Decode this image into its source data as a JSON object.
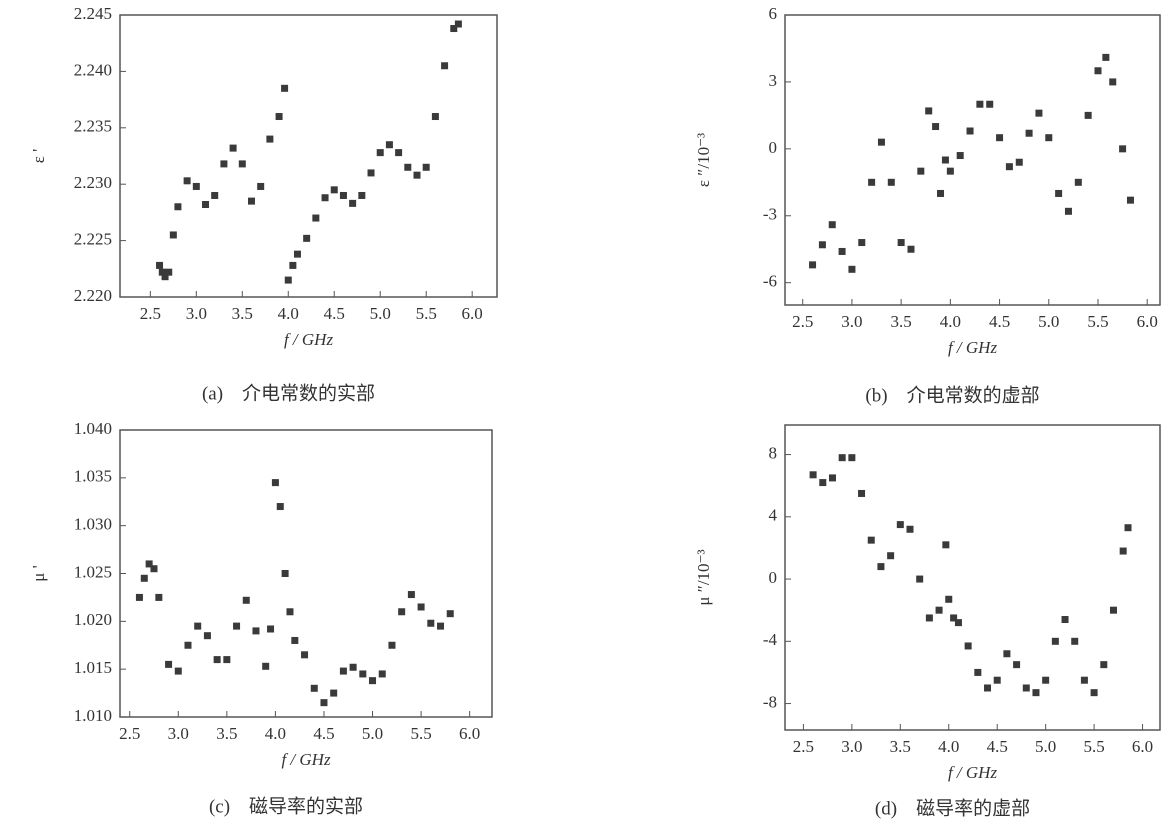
{
  "chart_data": [
    {
      "type": "scatter",
      "ylabel": "ε '",
      "xlabel": "f / GHz",
      "caption": "(a)　介电常数的实部",
      "color": "#3a3a3a",
      "xlim": [
        2.17,
        6.27
      ],
      "ylim": [
        2.22,
        2.245
      ],
      "xticks": [
        2.5,
        {
          "value": 3,
          "label": "3.0"
        },
        3.5,
        {
          "value": 4,
          "label": "4.0"
        },
        4.5,
        {
          "value": 5,
          "label": "5.0"
        },
        5.5,
        {
          "value": 6,
          "label": "6.0"
        }
      ],
      "yticks": [
        {
          "value": 2.22,
          "label": "2.220"
        },
        2.225,
        {
          "value": 2.23,
          "label": "2.230"
        },
        2.235,
        {
          "value": 2.24,
          "label": "2.240"
        },
        2.245
      ],
      "x": [
        2.6,
        2.63,
        2.66,
        2.7,
        2.75,
        2.8,
        2.9,
        3.0,
        3.1,
        3.2,
        3.3,
        3.4,
        3.5,
        3.6,
        3.7,
        3.8,
        3.9,
        3.96,
        4.0,
        4.05,
        4.1,
        4.2,
        4.3,
        4.4,
        4.5,
        4.6,
        4.7,
        4.8,
        4.9,
        5.0,
        5.1,
        5.2,
        5.3,
        5.4,
        5.5,
        5.6,
        5.7,
        5.8,
        5.85
      ],
      "values": [
        2.2228,
        2.2222,
        2.2218,
        2.2222,
        2.2255,
        2.228,
        2.2303,
        2.2298,
        2.2282,
        2.229,
        2.2318,
        2.2332,
        2.2318,
        2.2285,
        2.2298,
        2.234,
        2.236,
        2.2385,
        2.2215,
        2.2228,
        2.2238,
        2.2252,
        2.227,
        2.2288,
        2.2295,
        2.229,
        2.2283,
        2.229,
        2.231,
        2.2328,
        2.2335,
        2.2328,
        2.2315,
        2.2308,
        2.2315,
        2.236,
        2.2405,
        2.2438,
        2.2442
      ]
    },
    {
      "type": "scatter",
      "ylabel": "ε ″/10⁻³",
      "xlabel": "f / GHz",
      "caption": "(b)　介电常数的虚部",
      "color": "#3a3a3a",
      "xlim": [
        2.32,
        6.13
      ],
      "ylim": [
        -7,
        6
      ],
      "xticks": [
        2.5,
        {
          "value": 3,
          "label": "3.0"
        },
        3.5,
        {
          "value": 4,
          "label": "4.0"
        },
        4.5,
        {
          "value": 5,
          "label": "5.0"
        },
        5.5,
        {
          "value": 6,
          "label": "6.0"
        }
      ],
      "yticks": [
        -6,
        -3,
        0,
        3,
        6
      ],
      "x": [
        2.6,
        2.7,
        2.8,
        2.9,
        3.0,
        3.1,
        3.2,
        3.3,
        3.4,
        3.5,
        3.6,
        3.7,
        3.78,
        3.85,
        3.9,
        3.95,
        4.0,
        4.1,
        4.2,
        4.3,
        4.4,
        4.5,
        4.6,
        4.7,
        4.8,
        4.9,
        5.0,
        5.1,
        5.2,
        5.3,
        5.4,
        5.5,
        5.58,
        5.65,
        5.75,
        5.83
      ],
      "values": [
        -5.2,
        -4.3,
        -3.4,
        -4.6,
        -5.4,
        -4.2,
        -1.5,
        0.3,
        -1.5,
        -4.2,
        -4.5,
        -1.0,
        1.7,
        1.0,
        -2.0,
        -0.5,
        -1.0,
        -0.3,
        0.8,
        2.0,
        2.0,
        0.5,
        -0.8,
        -0.6,
        0.7,
        1.6,
        0.5,
        -2.0,
        -2.8,
        -1.5,
        1.5,
        3.5,
        4.1,
        3.0,
        0.0,
        -2.3
      ]
    },
    {
      "type": "scatter",
      "ylabel": "μ '",
      "xlabel": "f / GHz",
      "caption": "(c)　磁导率的实部",
      "color": "#3a3a3a",
      "xlim": [
        2.4,
        6.23
      ],
      "ylim": [
        1.01,
        1.04
      ],
      "xticks": [
        2.5,
        {
          "value": 3,
          "label": "3.0"
        },
        3.5,
        {
          "value": 4,
          "label": "4.0"
        },
        4.5,
        {
          "value": 5,
          "label": "5.0"
        },
        5.5,
        {
          "value": 6,
          "label": "6.0"
        }
      ],
      "yticks": [
        {
          "value": 1.01,
          "label": "1.010"
        },
        1.015,
        {
          "value": 1.02,
          "label": "1.020"
        },
        1.025,
        {
          "value": 1.03,
          "label": "1.030"
        },
        1.035,
        {
          "value": 1.04,
          "label": "1.040"
        }
      ],
      "x": [
        2.6,
        2.65,
        2.7,
        2.75,
        2.8,
        2.9,
        3.0,
        3.1,
        3.2,
        3.3,
        3.4,
        3.5,
        3.6,
        3.7,
        3.8,
        3.9,
        3.95,
        4.0,
        4.05,
        4.1,
        4.15,
        4.2,
        4.3,
        4.4,
        4.5,
        4.6,
        4.7,
        4.8,
        4.9,
        5.0,
        5.1,
        5.2,
        5.3,
        5.4,
        5.5,
        5.6,
        5.7,
        5.8
      ],
      "values": [
        1.0225,
        1.0245,
        1.026,
        1.0255,
        1.0225,
        1.0155,
        1.0148,
        1.0175,
        1.0195,
        1.0185,
        1.016,
        1.016,
        1.0195,
        1.0222,
        1.019,
        1.0153,
        1.0192,
        1.0345,
        1.032,
        1.025,
        1.021,
        1.018,
        1.0165,
        1.013,
        1.0115,
        1.0125,
        1.0148,
        1.0152,
        1.0145,
        1.0138,
        1.0145,
        1.0175,
        1.021,
        1.0228,
        1.0215,
        1.0198,
        1.0195,
        1.0208
      ]
    },
    {
      "type": "scatter",
      "ylabel": "μ ″/10⁻³",
      "xlabel": "f / GHz",
      "caption": "(d)　磁导率的虚部",
      "color": "#3a3a3a",
      "xlim": [
        2.31,
        6.18
      ],
      "ylim": [
        -9.7,
        9.9
      ],
      "xticks": [
        2.5,
        {
          "value": 3,
          "label": "3.0"
        },
        3.5,
        {
          "value": 4,
          "label": "4.0"
        },
        4.5,
        {
          "value": 5,
          "label": "5.0"
        },
        5.5,
        {
          "value": 6,
          "label": "6.0"
        }
      ],
      "yticks": [
        -8,
        -4,
        0,
        4,
        8
      ],
      "x": [
        2.6,
        2.7,
        2.8,
        2.9,
        3.0,
        3.1,
        3.2,
        3.3,
        3.4,
        3.5,
        3.6,
        3.7,
        3.8,
        3.9,
        3.97,
        4.0,
        4.05,
        4.1,
        4.2,
        4.3,
        4.4,
        4.5,
        4.6,
        4.7,
        4.8,
        4.9,
        5.0,
        5.1,
        5.2,
        5.3,
        5.4,
        5.5,
        5.6,
        5.7,
        5.8,
        5.85
      ],
      "values": [
        6.7,
        6.2,
        6.5,
        7.8,
        7.8,
        5.5,
        2.5,
        0.8,
        1.5,
        3.5,
        3.2,
        0.0,
        -2.5,
        -2.0,
        2.2,
        -1.3,
        -2.5,
        -2.8,
        -4.3,
        -6.0,
        -7.0,
        -6.5,
        -4.8,
        -5.5,
        -7.0,
        -7.3,
        -6.5,
        -4.0,
        -2.6,
        -4.0,
        -6.5,
        -7.3,
        -5.5,
        -2.0,
        1.8,
        3.3
      ]
    }
  ]
}
